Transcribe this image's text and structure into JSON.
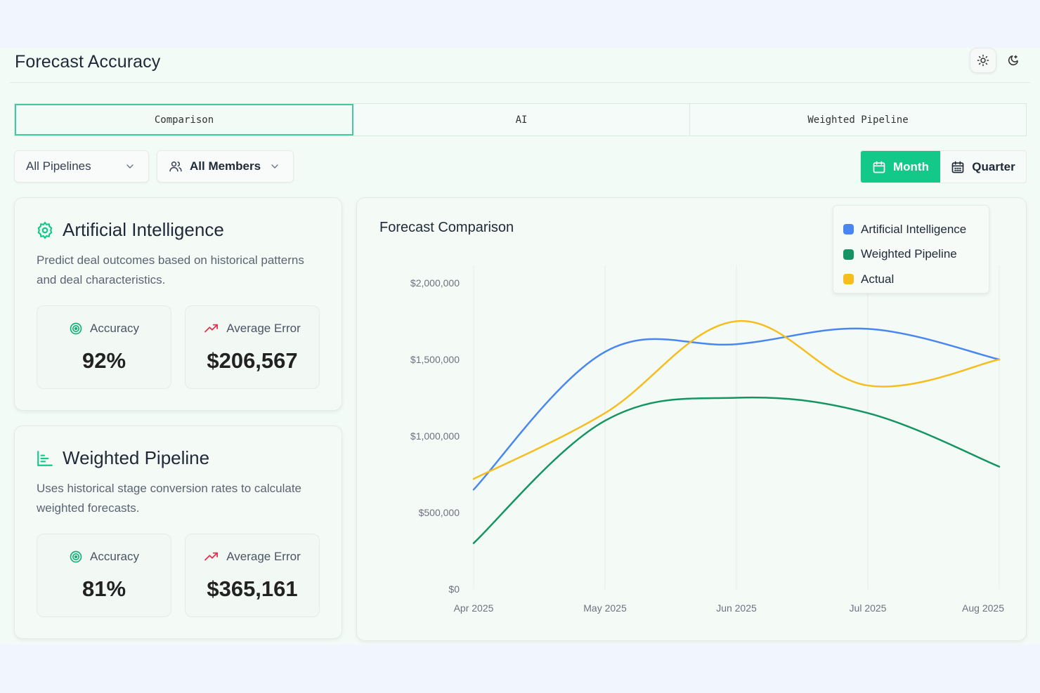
{
  "header": {
    "title": "Forecast Accuracy",
    "theme": {
      "light_icon": "sun-icon",
      "dark_icon": "moon-icon"
    }
  },
  "tabs": [
    {
      "label": "Comparison",
      "active": true
    },
    {
      "label": "AI",
      "active": false
    },
    {
      "label": "Weighted Pipeline",
      "active": false
    }
  ],
  "filters": {
    "pipeline": {
      "value": "All Pipelines"
    },
    "members": {
      "value": "All Members"
    }
  },
  "period": {
    "month_label": "Month",
    "quarter_label": "Quarter",
    "selected": "Month"
  },
  "cards": {
    "ai": {
      "title": "Artificial Intelligence",
      "description": "Predict deal outcomes based on historical patterns and deal characteristics.",
      "accuracy_label": "Accuracy",
      "accuracy_value": "92%",
      "error_label": "Average Error",
      "error_value": "$206,567"
    },
    "wp": {
      "title": "Weighted Pipeline",
      "description": "Uses historical stage conversion rates to calculate weighted forecasts.",
      "accuracy_label": "Accuracy",
      "accuracy_value": "81%",
      "error_label": "Average Error",
      "error_value": "$365,161"
    }
  },
  "colors": {
    "accent": "#12c98a",
    "ai": "#4a86f0",
    "wp": "#149463",
    "actual": "#f6bd1f",
    "error_trend": "#e0334f"
  },
  "chart_data": {
    "type": "line",
    "title": "Forecast Comparison",
    "categories": [
      "Apr 2025",
      "May 2025",
      "Jun 2025",
      "Jul 2025",
      "Aug 2025"
    ],
    "y_ticks": [
      "$0",
      "$500,000",
      "$1,000,000",
      "$1,500,000",
      "$2,000,000"
    ],
    "ylim": [
      0,
      2000000
    ],
    "legend_position": "top-right",
    "series": [
      {
        "name": "Artificial Intelligence",
        "color": "#4a86f0",
        "values": [
          650000,
          1550000,
          1600000,
          1700000,
          1500000
        ]
      },
      {
        "name": "Weighted Pipeline",
        "color": "#149463",
        "values": [
          300000,
          1100000,
          1250000,
          1150000,
          800000
        ]
      },
      {
        "name": "Actual",
        "color": "#f6bd1f",
        "values": [
          720000,
          1150000,
          1750000,
          1330000,
          1500000
        ]
      }
    ]
  }
}
